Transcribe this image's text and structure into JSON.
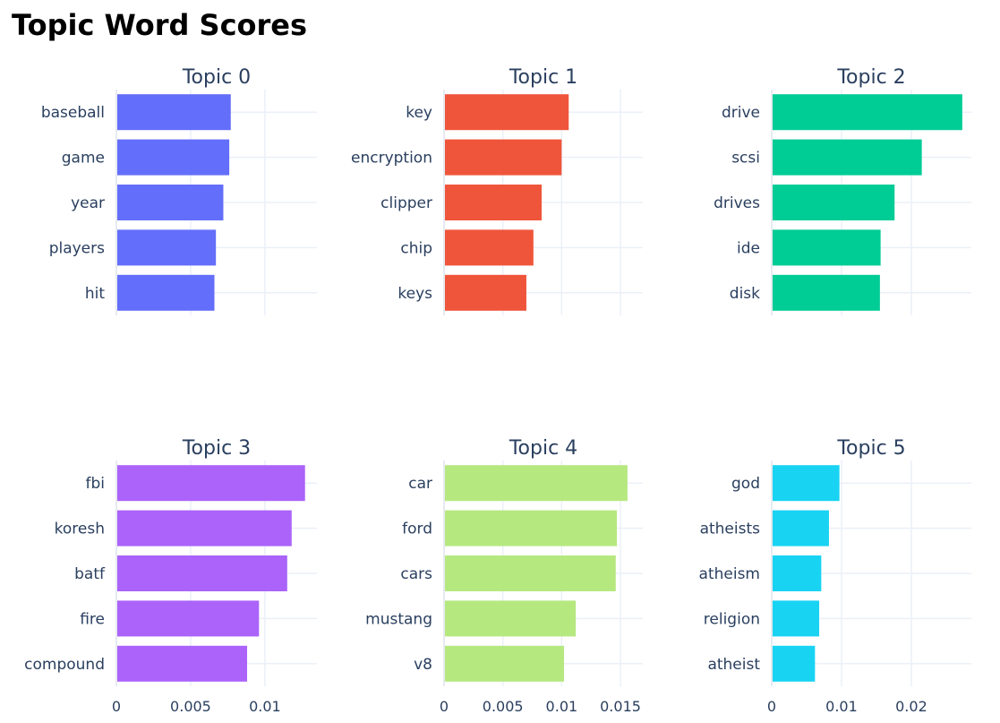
{
  "title": "Topic Word Scores",
  "chart_data": [
    {
      "type": "bar",
      "orientation": "horizontal",
      "title": "Topic 0",
      "color": "#636efa",
      "categories": [
        "baseball",
        "game",
        "year",
        "players",
        "hit"
      ],
      "values": [
        0.0077,
        0.0076,
        0.0072,
        0.0067,
        0.0066
      ],
      "xlim": [
        0,
        0.0135
      ],
      "ticks": [
        0,
        0.005,
        0.01
      ],
      "tick_labels": []
    },
    {
      "type": "bar",
      "orientation": "horizontal",
      "title": "Topic 1",
      "color": "#ef553b",
      "categories": [
        "key",
        "encryption",
        "clipper",
        "chip",
        "keys"
      ],
      "values": [
        0.0106,
        0.01,
        0.0083,
        0.0076,
        0.007
      ],
      "xlim": [
        0,
        0.0169
      ],
      "ticks": [
        0,
        0.005,
        0.01,
        0.015
      ],
      "tick_labels": []
    },
    {
      "type": "bar",
      "orientation": "horizontal",
      "title": "Topic 2",
      "color": "#00cc96",
      "categories": [
        "drive",
        "scsi",
        "drives",
        "ide",
        "disk"
      ],
      "values": [
        0.0273,
        0.0215,
        0.0176,
        0.0156,
        0.0155
      ],
      "xlim": [
        0,
        0.0286
      ],
      "ticks": [
        0,
        0.01,
        0.02
      ],
      "tick_labels": []
    },
    {
      "type": "bar",
      "orientation": "horizontal",
      "title": "Topic 3",
      "color": "#ab63fa",
      "categories": [
        "fbi",
        "koresh",
        "batf",
        "fire",
        "compound"
      ],
      "values": [
        0.0127,
        0.0118,
        0.0115,
        0.0096,
        0.0088
      ],
      "xlim": [
        0,
        0.0135
      ],
      "ticks": [
        0,
        0.005,
        0.01
      ],
      "tick_labels": [
        "0",
        "0.005",
        "0.01"
      ]
    },
    {
      "type": "bar",
      "orientation": "horizontal",
      "title": "Topic 4",
      "color": "#b6e880",
      "categories": [
        "car",
        "ford",
        "cars",
        "mustang",
        "v8"
      ],
      "values": [
        0.0156,
        0.0147,
        0.0146,
        0.0112,
        0.0102
      ],
      "xlim": [
        0,
        0.0169
      ],
      "ticks": [
        0,
        0.005,
        0.01,
        0.015
      ],
      "tick_labels": [
        "0",
        "0.005",
        "0.01",
        "0.015"
      ]
    },
    {
      "type": "bar",
      "orientation": "horizontal",
      "title": "Topic 5",
      "color": "#19d3f3",
      "categories": [
        "god",
        "atheists",
        "atheism",
        "religion",
        "atheist"
      ],
      "values": [
        0.0097,
        0.0082,
        0.0071,
        0.0068,
        0.0062
      ],
      "xlim": [
        0,
        0.0286
      ],
      "ticks": [
        0,
        0.01,
        0.02
      ],
      "tick_labels": [
        "0",
        "0.01",
        "0.02"
      ]
    }
  ]
}
